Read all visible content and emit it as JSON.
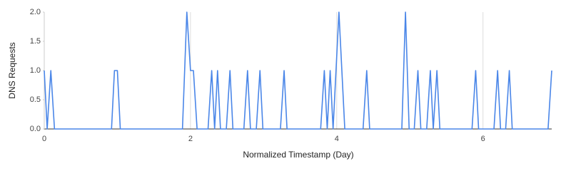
{
  "chart_data": {
    "type": "line",
    "x_label": "Normalized Timestamp (Day)",
    "y_label": "DNS Requests",
    "x": [
      0,
      0.04,
      0.09,
      0.14,
      0.92,
      0.96,
      1.0,
      1.04,
      1.89,
      1.95,
      2.0,
      2.04,
      2.09,
      2.24,
      2.29,
      2.33,
      2.37,
      2.41,
      2.49,
      2.54,
      2.58,
      2.73,
      2.78,
      2.82,
      2.9,
      2.95,
      2.99,
      3.23,
      3.28,
      3.32,
      3.78,
      3.83,
      3.87,
      3.91,
      3.95,
      4.03,
      4.11,
      4.36,
      4.41,
      4.45,
      4.89,
      4.94,
      4.99,
      5.06,
      5.11,
      5.15,
      5.23,
      5.28,
      5.32,
      5.37,
      5.41,
      5.85,
      5.9,
      5.94,
      6.15,
      6.2,
      6.24,
      6.31,
      6.36,
      6.4,
      6.89,
      6.94
    ],
    "series": [
      {
        "color": "#4a86e8",
        "values": [
          1,
          0,
          1,
          0,
          0,
          1,
          1,
          0,
          0,
          2,
          1,
          1,
          0,
          0,
          1,
          0,
          1,
          0,
          0,
          1,
          0,
          0,
          1,
          0,
          0,
          1,
          0,
          0,
          1,
          0,
          0,
          1,
          0,
          1,
          0,
          2,
          0,
          0,
          1,
          0,
          0,
          2,
          0,
          0,
          1,
          0,
          0,
          1,
          0,
          1,
          0,
          0,
          1,
          0,
          0,
          1,
          0,
          0,
          1,
          0,
          0,
          1
        ]
      }
    ],
    "xlim": [
      0,
      6.94
    ],
    "xticks": [
      0,
      2,
      4,
      6
    ],
    "ylim": [
      0,
      2
    ],
    "yticks": [
      {
        "value": 0,
        "label": "0.0"
      },
      {
        "value": 0.5,
        "label": "0.5"
      },
      {
        "value": 1,
        "label": "1.0"
      },
      {
        "value": 1.5,
        "label": "1.5"
      },
      {
        "value": 2,
        "label": "2.0"
      }
    ],
    "grid": "x"
  }
}
